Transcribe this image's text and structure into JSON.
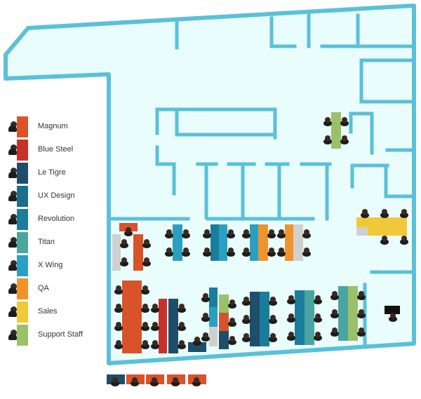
{
  "legend": {
    "items": [
      {
        "label": "Magnum",
        "color": "#d9532a"
      },
      {
        "label": "Blue Steel",
        "color": "#c8312a"
      },
      {
        "label": "Le Tigre",
        "color": "#1f4e6b"
      },
      {
        "label": "UX Design",
        "color": "#1b6e8a"
      },
      {
        "label": "Revolution",
        "color": "#1a7d9c"
      },
      {
        "label": "Titan",
        "color": "#4aa5a0"
      },
      {
        "label": "X Wing",
        "color": "#2aa0c0"
      },
      {
        "label": "QA",
        "color": "#f0932b"
      },
      {
        "label": "Sales",
        "color": "#f0c93a"
      },
      {
        "label": "Support Staff",
        "color": "#9bc06a"
      }
    ]
  },
  "colors": {
    "wall": "#5bc0d8",
    "floor": "#e9fdfd",
    "person_head": "#3a2a1e",
    "person_body": "#1d1d1d",
    "desk_grey": "#d0d0d0"
  }
}
